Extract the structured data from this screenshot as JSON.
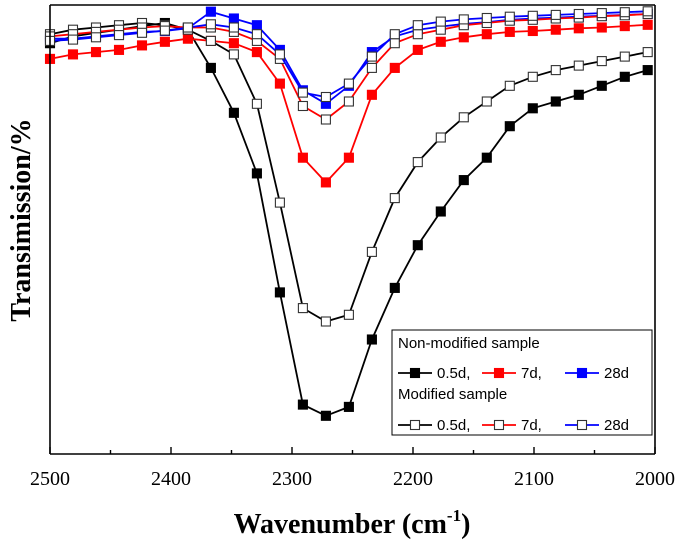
{
  "chart_data": {
    "type": "line",
    "xlabel": "Wavenumber (cm-1)",
    "xlabel_main": "Wavenumber (cm",
    "xlabel_sup": "-1",
    "xlabel_close": ")",
    "ylabel": "Transimission/%",
    "xlim": [
      2500,
      2000
    ],
    "ylim": [
      0,
      100
    ],
    "x_reversed": true,
    "xticks": [
      2500,
      2400,
      2300,
      2200,
      2100,
      2000
    ],
    "y_tick_labels_shown": false,
    "legend": {
      "position": "bottom-right",
      "group1_title": "Non-modified sample",
      "group2_title": "Modified sample",
      "labels": [
        "0.5d,",
        "7d,",
        "28d"
      ]
    },
    "x": [
      2500,
      2481,
      2462,
      2443,
      2424,
      2405,
      2386,
      2367,
      2348,
      2329,
      2310,
      2291,
      2272,
      2253,
      2234,
      2215,
      2196,
      2177,
      2158,
      2139,
      2120,
      2101,
      2082,
      2063,
      2044,
      2025,
      2006
    ],
    "series": [
      {
        "name": "Non-modified 0.5d",
        "group": "Non-modified sample",
        "color": "#000000",
        "marker": "filled-square",
        "values": [
          91.5,
          93.0,
          93.8,
          94.5,
          95.3,
          96.0,
          94.5,
          86.0,
          76.0,
          62.5,
          36.0,
          11.0,
          8.5,
          10.5,
          25.5,
          37.0,
          46.5,
          54.0,
          61.0,
          66.0,
          73.0,
          77.0,
          78.5,
          80.0,
          82.0,
          84.0,
          85.5
        ]
      },
      {
        "name": "Non-modified 7d",
        "group": "Non-modified sample",
        "color": "#ff0000",
        "marker": "filled-square",
        "values": [
          88.0,
          89.0,
          89.5,
          90.0,
          91.0,
          91.8,
          92.5,
          92.0,
          91.5,
          89.5,
          82.5,
          66.0,
          60.5,
          66.0,
          80.0,
          86.0,
          90.0,
          91.8,
          92.8,
          93.5,
          94.0,
          94.2,
          94.5,
          94.8,
          95.0,
          95.3,
          95.6
        ]
      },
      {
        "name": "Non-modified 28d",
        "group": "Non-modified sample",
        "color": "#0000ff",
        "marker": "filled-square",
        "values": [
          92.5,
          92.5,
          93.0,
          93.5,
          94.0,
          94.2,
          94.8,
          98.5,
          97.0,
          95.5,
          90.0,
          81.0,
          78.0,
          82.0,
          89.5,
          93.0,
          94.5,
          95.2,
          95.8,
          96.2,
          96.7,
          97.0,
          97.2,
          97.4,
          97.6,
          97.8,
          98.0
        ]
      },
      {
        "name": "Modified 0.5d",
        "group": "Modified sample",
        "color": "#000000",
        "marker": "open-square",
        "values": [
          93.5,
          94.5,
          95.0,
          95.5,
          96.0,
          95.5,
          94.5,
          92.0,
          89.0,
          78.0,
          56.0,
          32.5,
          29.5,
          31.0,
          45.0,
          57.0,
          65.0,
          70.5,
          75.0,
          78.5,
          82.0,
          84.0,
          85.5,
          86.5,
          87.5,
          88.5,
          89.5
        ]
      },
      {
        "name": "Modified 7d",
        "group": "Modified sample",
        "color": "#ff0000",
        "marker": "open-square",
        "values": [
          93.0,
          93.5,
          94.0,
          94.5,
          95.0,
          95.3,
          95.0,
          95.0,
          94.0,
          92.0,
          88.0,
          77.5,
          74.5,
          78.5,
          86.0,
          91.5,
          93.5,
          94.5,
          95.5,
          96.0,
          96.5,
          96.7,
          97.0,
          97.2,
          97.5,
          97.7,
          98.0
        ]
      },
      {
        "name": "Modified 28d",
        "group": "Modified sample",
        "color": "#0000ff",
        "marker": "open-square",
        "values": [
          92.0,
          92.3,
          92.8,
          93.3,
          93.8,
          94.3,
          95.0,
          95.7,
          95.0,
          93.5,
          89.0,
          80.5,
          79.5,
          82.5,
          88.5,
          93.5,
          95.5,
          96.3,
          96.8,
          97.1,
          97.4,
          97.6,
          97.8,
          98.0,
          98.2,
          98.4,
          98.6
        ]
      }
    ]
  }
}
